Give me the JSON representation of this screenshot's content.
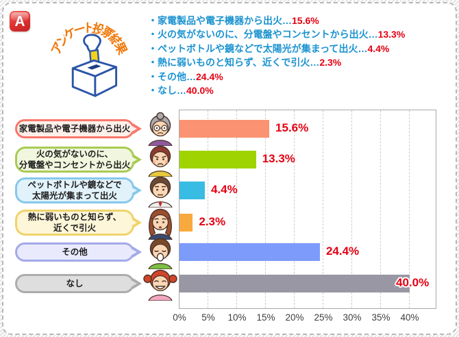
{
  "header": {
    "badge": "A",
    "title_text": "アンケート投票結果",
    "title_chars": [
      "ア",
      "ン",
      "ケ",
      "ー",
      "ト",
      "投",
      "票",
      "結",
      "果"
    ],
    "title_color": "#f0780a",
    "badge_color": "#d92c2c"
  },
  "legend": {
    "bullet": "・",
    "separator": "…",
    "text_color": "#1b93d0",
    "value_color": "#e50012",
    "items": [
      {
        "label": "家電製品や電子機器から出火",
        "value": "15.6%"
      },
      {
        "label": "火の気がないのに、分電盤やコンセントから出火",
        "value": "13.3%"
      },
      {
        "label": "ペットボトルや鏡などで太陽光が集まって出火",
        "value": "4.4%"
      },
      {
        "label": "熱に弱いものと知らず、近くで引火",
        "value": "2.3%"
      },
      {
        "label": "その他",
        "value": "24.4%"
      },
      {
        "label": "なし",
        "value": "40.0%"
      }
    ]
  },
  "chart_data": {
    "type": "bar",
    "orientation": "horizontal",
    "title": "アンケート投票結果",
    "categories": [
      "家電製品や電子機器から出火",
      "火の気がないのに、分電盤やコンセントから出火",
      "ペットボトルや鏡などで太陽光が集まって出火",
      "熱に弱いものと知らず、近くで引火",
      "その他",
      "なし"
    ],
    "values": [
      15.6,
      13.3,
      4.4,
      2.3,
      24.4,
      40.0
    ],
    "value_labels": [
      "15.6%",
      "13.3%",
      "4.4%",
      "2.3%",
      "24.4%",
      "40.0%"
    ],
    "bar_colors": [
      "#fb9271",
      "#9fd402",
      "#38bce3",
      "#f8a93e",
      "#7d9bfa",
      "#9897a3"
    ],
    "xlim": [
      0,
      44.8
    ],
    "grid": "vertical-dashed",
    "value_label_color": "#e50012",
    "ticks": [
      {
        "pos": 0,
        "label": "0%"
      },
      {
        "pos": 5,
        "label": "5%"
      },
      {
        "pos": 10,
        "label": "10%"
      },
      {
        "pos": 15,
        "label": "15%"
      },
      {
        "pos": 20,
        "label": "20%"
      },
      {
        "pos": 25,
        "label": "25%"
      },
      {
        "pos": 30,
        "label": "30%"
      },
      {
        "pos": 35,
        "label": "35%"
      },
      {
        "pos": 40,
        "label": "40%"
      }
    ]
  },
  "rows": [
    {
      "bubble_lines": [
        "家電製品や電子機器から出火"
      ],
      "bubble_border": "#f9776b",
      "bubble_fill": "#fdefe9",
      "avatar": {
        "name": "elderly-woman",
        "hair": "#aaaab2",
        "shirt": "#8e5a9e",
        "style": "bun-glasses"
      }
    },
    {
      "bubble_lines": [
        "火の気がないのに、",
        "分電盤やコンセントから出火"
      ],
      "bubble_border": "#a8cb52",
      "bubble_fill": "#f1f7de",
      "avatar": {
        "name": "angry-woman",
        "hair": "#8e3b30",
        "shirt": "#e9c93e",
        "style": "short-angry"
      }
    },
    {
      "bubble_lines": [
        "ペットボトルや鏡などで",
        "太陽光が集まって出火"
      ],
      "bubble_border": "#86c8eb",
      "bubble_fill": "#e2f2fb",
      "avatar": {
        "name": "middle-aged-man",
        "hair": "#6b4a35",
        "shirt": "#efefef",
        "style": "man-neutral"
      }
    },
    {
      "bubble_lines": [
        "熱に弱いものと知らず、",
        "近くで引火"
      ],
      "bubble_border": "#efd36b",
      "bubble_fill": "#fdf6d8",
      "avatar": {
        "name": "worried-woman",
        "hair": "#9c4f2e",
        "shirt": "#3a4a72",
        "style": "long-worried"
      }
    },
    {
      "bubble_lines": [
        "その他"
      ],
      "bubble_border": "#a3a9e9",
      "bubble_fill": "#e9ebfc",
      "avatar": {
        "name": "yawning-boy",
        "hair": "#7a4a2b",
        "shirt": "#7cbf41",
        "style": "boy-yawn"
      }
    },
    {
      "bubble_lines": [
        "なし"
      ],
      "bubble_border": "#acacae",
      "bubble_fill": "#dededf",
      "avatar": {
        "name": "laughing-girl",
        "hair": "#d1452a",
        "shirt": "#f2a8c2",
        "style": "girl-laugh"
      }
    }
  ]
}
